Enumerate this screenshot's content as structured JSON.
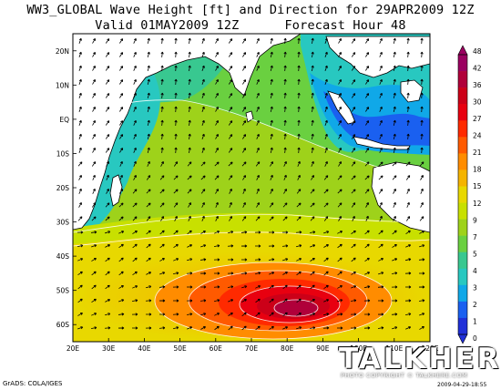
{
  "title": {
    "line1": "WW3_GLOBAL Wave Height [ft] and Direction for 29APR2009 12Z",
    "line2": "Valid 01MAY2009 12Z      Forecast Hour 48"
  },
  "latitude_labels": [
    "20N",
    "10N",
    "EQ",
    "10S",
    "20S",
    "30S",
    "40S",
    "50S",
    "60S"
  ],
  "longitude_labels": [
    "20E",
    "30E",
    "40E",
    "50E",
    "60E",
    "70E",
    "80E",
    "90E",
    "100E",
    "110E",
    "120E"
  ],
  "colorbar": {
    "labels": [
      "48",
      "42",
      "36",
      "30",
      "27",
      "24",
      "21",
      "18",
      "15",
      "12",
      "9",
      "7",
      "5",
      "4",
      "3",
      "2",
      "1",
      "0"
    ],
    "colors": [
      "#9a0060",
      "#b0003a",
      "#cc0018",
      "#e80010",
      "#ff2a00",
      "#ff5a00",
      "#ff8c00",
      "#f5b400",
      "#e8d800",
      "#c8e000",
      "#9ed21a",
      "#6ad040",
      "#38c890",
      "#28c8c0",
      "#10a8e8",
      "#1a60f0",
      "#2030d8"
    ],
    "unit": "ft"
  },
  "footer": {
    "credit": "GrADS: COLA/IGES",
    "timestamp": "2009-04-29-18:55"
  },
  "watermark": {
    "text": "TALKHERE",
    "subtitle": "PHOTO COPYRIGHT © TALKHERE.COM"
  },
  "chart_data": {
    "type": "heatmap",
    "title": "WW3_GLOBAL Wave Height [ft] and Direction for 29APR2009 12Z",
    "subtitle": "Valid 01MAY2009 12Z      Forecast Hour 48",
    "variable": "Wave Height",
    "unit": "ft",
    "lon_range": [
      20,
      120
    ],
    "lat_range": [
      -65,
      25
    ],
    "contour_levels": [
      0,
      1,
      2,
      3,
      4,
      5,
      7,
      9,
      12,
      15,
      18,
      21,
      24,
      27,
      30,
      36,
      42,
      48
    ],
    "arrows": "wave direction",
    "grid": false
  }
}
